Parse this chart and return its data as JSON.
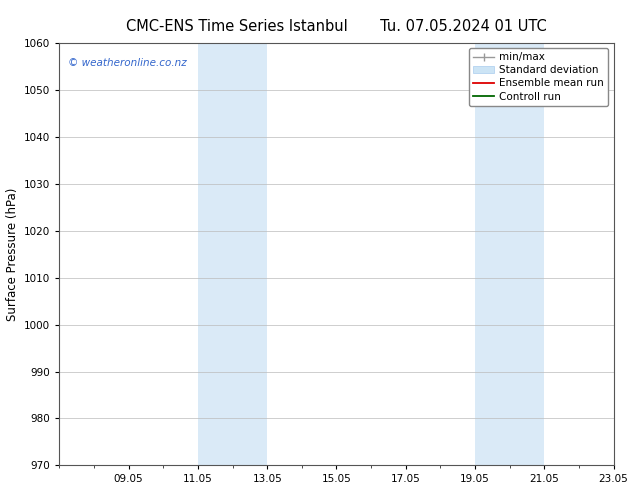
{
  "title_left": "CMC-ENS Time Series Istanbul",
  "title_right": "Tu. 07.05.2024 01 UTC",
  "ylabel": "Surface Pressure (hPa)",
  "ylim": [
    970,
    1060
  ],
  "yticks": [
    970,
    980,
    990,
    1000,
    1010,
    1020,
    1030,
    1040,
    1050,
    1060
  ],
  "xtick_labels": [
    "09.05",
    "11.05",
    "13.05",
    "15.05",
    "17.05",
    "19.05",
    "21.05",
    "23.05"
  ],
  "xtick_positions": [
    2,
    4,
    6,
    8,
    10,
    12,
    14,
    16
  ],
  "x_min": 0,
  "x_max": 16,
  "shaded_bands": [
    {
      "x_start": 4,
      "x_end": 6
    },
    {
      "x_start": 12,
      "x_end": 14
    }
  ],
  "shaded_color": "#daeaf7",
  "watermark_text": "© weatheronline.co.nz",
  "watermark_color": "#3366cc",
  "background_color": "#ffffff",
  "grid_color": "#bbbbbb",
  "spine_color": "#555555",
  "title_fontsize": 10.5,
  "tick_fontsize": 7.5,
  "ylabel_fontsize": 8.5,
  "watermark_fontsize": 7.5,
  "legend_fontsize": 7.5
}
